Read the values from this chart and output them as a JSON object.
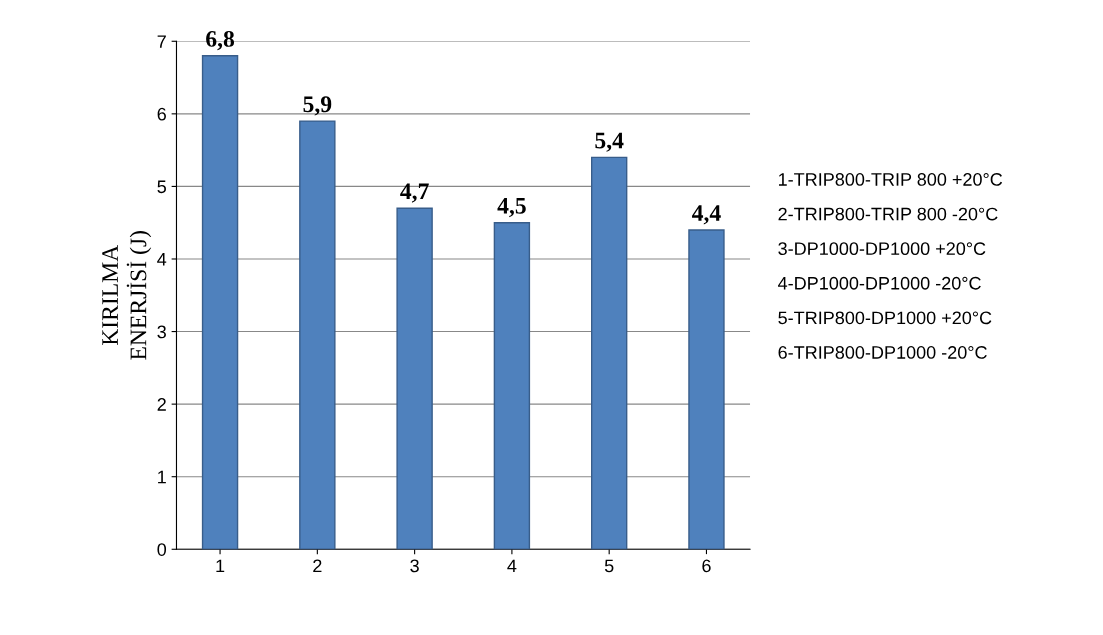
{
  "chart_data": {
    "type": "bar",
    "ylabel": "KIRILMA\nENERJİSİ (J)",
    "categories": [
      "1",
      "2",
      "3",
      "4",
      "5",
      "6"
    ],
    "values": [
      6.8,
      5.9,
      4.7,
      4.5,
      5.4,
      4.4
    ],
    "value_labels": [
      "6,8",
      "5,9",
      "4,7",
      "4,5",
      "5,4",
      "4,4"
    ],
    "color": "#4f81bd",
    "ylim": [
      0,
      7
    ],
    "yticks": [
      0,
      1,
      2,
      3,
      4,
      5,
      6,
      7
    ],
    "grid": "y",
    "annotations": [
      "1-TRIP800-TRIP 800 +20°C",
      "2-TRIP800-TRIP 800 -20°C",
      "3-DP1000-DP1000 +20°C",
      "4-DP1000-DP1000 -20°C",
      "5-TRIP800-DP1000 +20°C",
      "6-TRIP800-DP1000 -20°C"
    ]
  }
}
